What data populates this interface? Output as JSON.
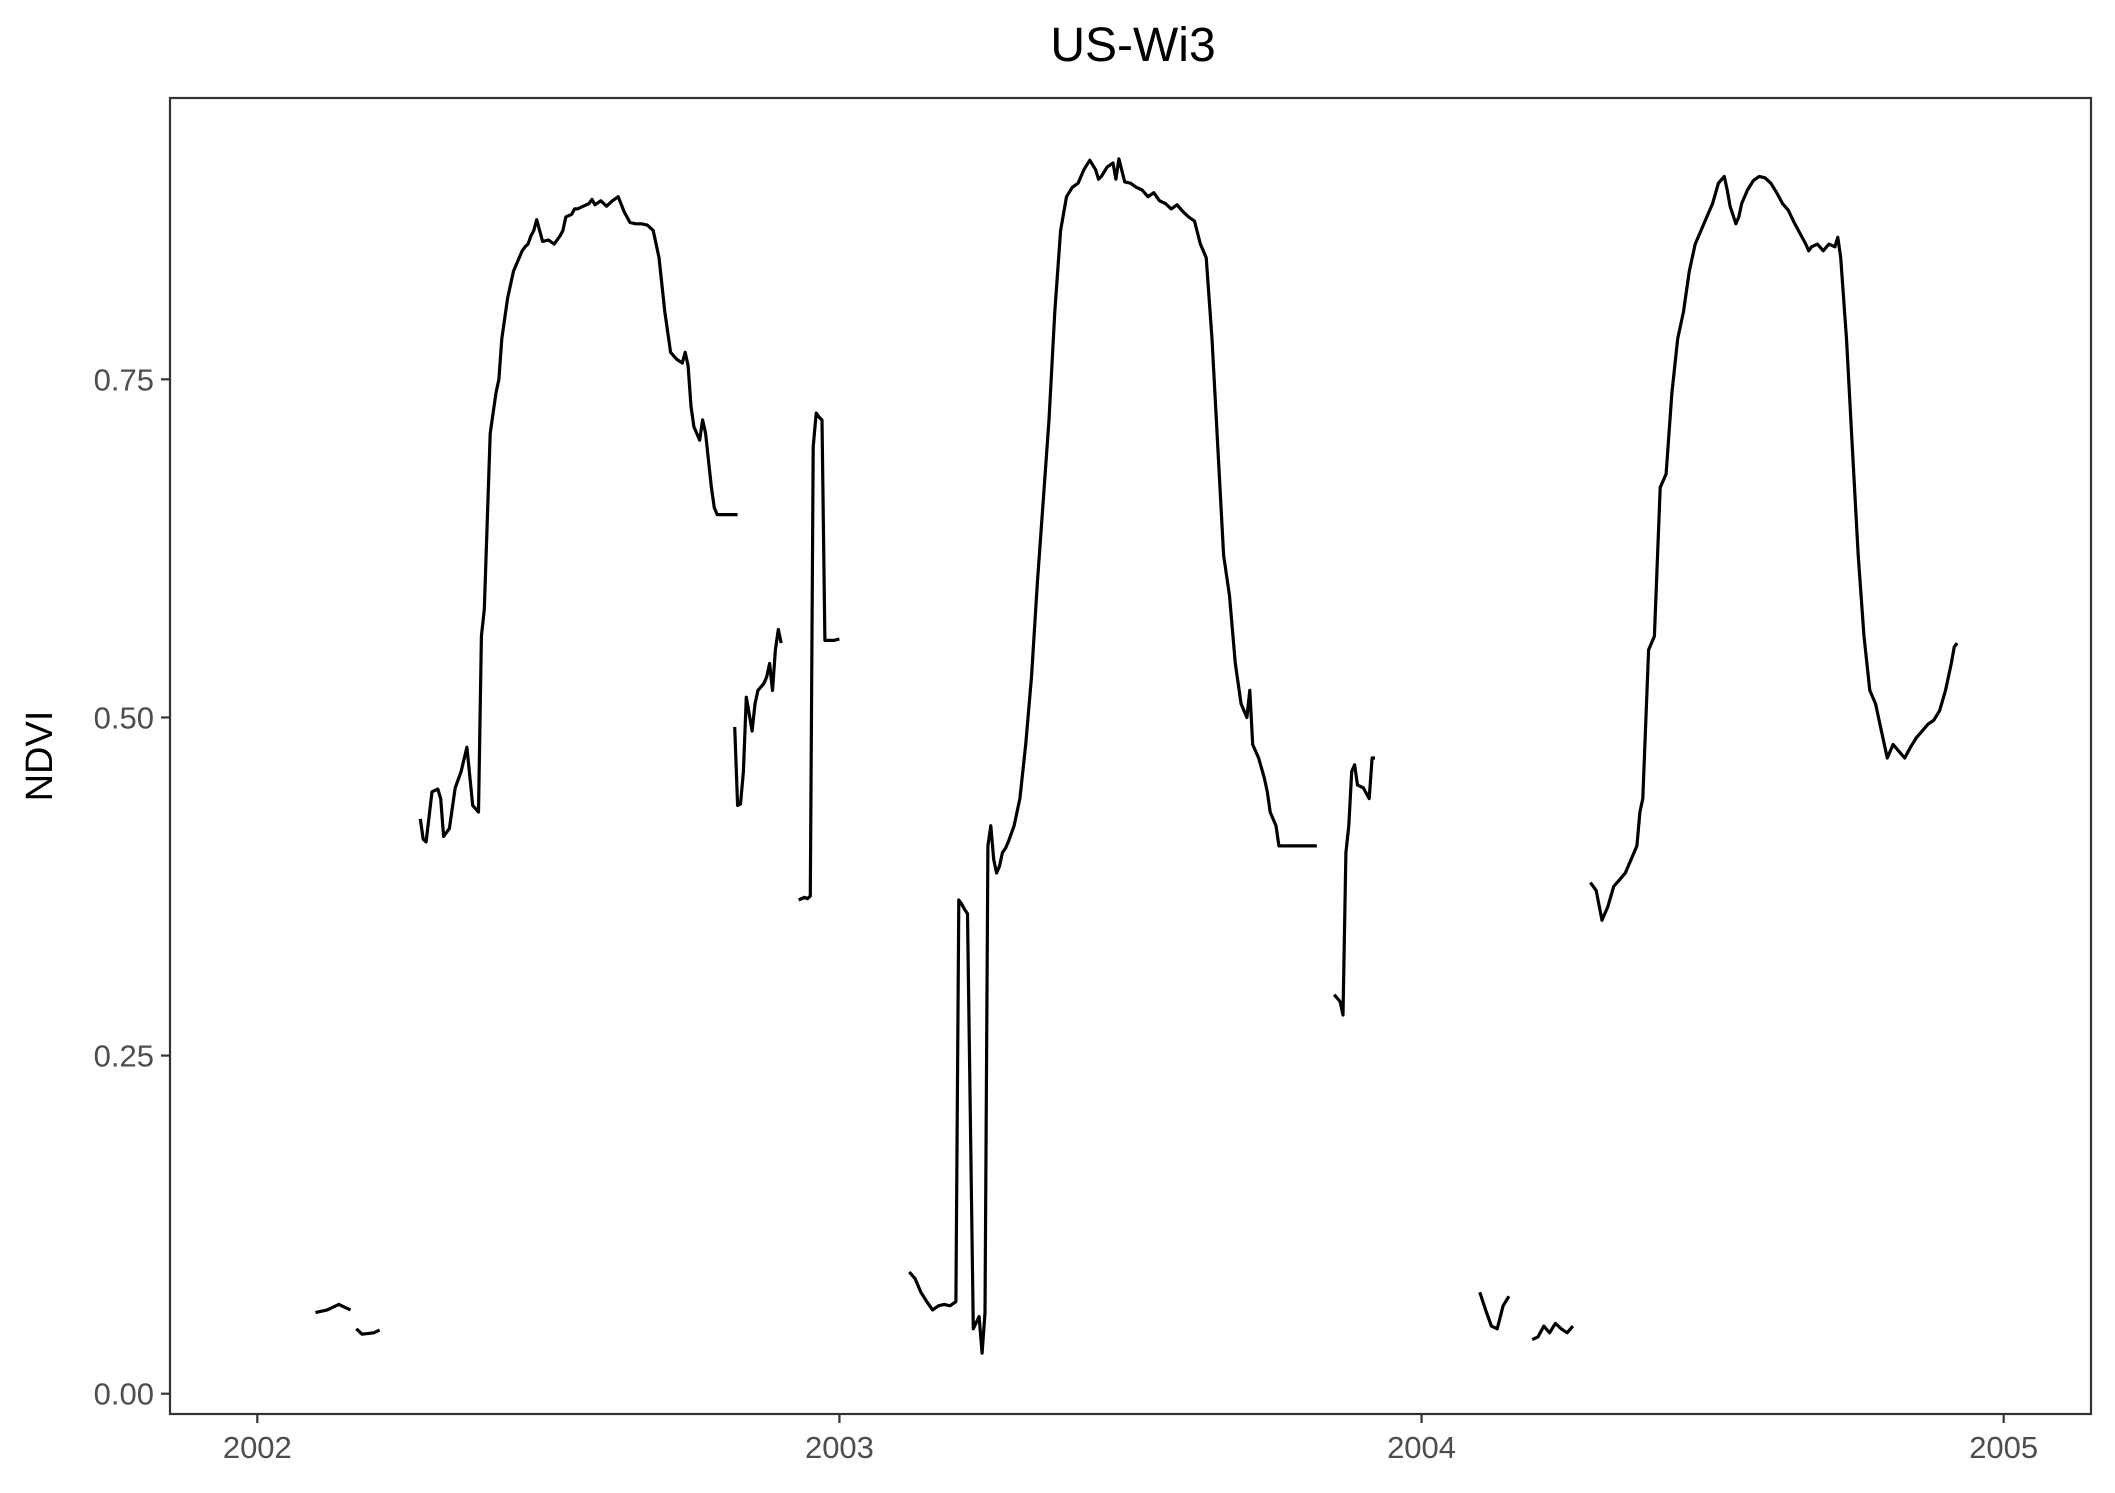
{
  "chart_data": {
    "type": "line",
    "title": "US-Wi3",
    "xlabel": "",
    "ylabel": "NDVI",
    "x_ticks": [
      "2002",
      "2003",
      "2004",
      "2005"
    ],
    "y_ticks": [
      "0.00",
      "0.25",
      "0.50",
      "0.75"
    ],
    "xlim": [
      2001.85,
      2005.15
    ],
    "ylim": [
      -0.015,
      0.958
    ],
    "grid": false,
    "legend": "none",
    "line_color": "#000000",
    "segments": [
      {
        "x": [
          2002.1,
          2002.12,
          2002.14,
          2002.16
        ],
        "y": [
          0.06,
          0.062,
          0.066,
          0.062
        ]
      },
      {
        "x": [
          2002.17,
          2002.18,
          2002.2,
          2002.21
        ],
        "y": [
          0.048,
          0.044,
          0.045,
          0.047
        ]
      },
      {
        "x": [
          2002.28,
          2002.285,
          2002.29,
          2002.3,
          2002.31,
          2002.315,
          2002.32,
          2002.33,
          2002.34,
          2002.35,
          2002.36,
          2002.37,
          2002.38,
          2002.385,
          2002.39,
          2002.4,
          2002.41,
          2002.415,
          2002.42,
          2002.43,
          2002.44,
          2002.445,
          2002.45,
          2002.455,
          2002.46,
          2002.465,
          2002.47,
          2002.475,
          2002.48,
          2002.49,
          2002.5,
          2002.51,
          2002.52,
          2002.525,
          2002.53,
          2002.54,
          2002.545,
          2002.55,
          2002.56,
          2002.57,
          2002.575,
          2002.58,
          2002.59,
          2002.6,
          2002.61,
          2002.62,
          2002.63,
          2002.64,
          2002.65,
          2002.66,
          2002.67,
          2002.68,
          2002.685,
          2002.69,
          2002.7,
          2002.71,
          2002.72,
          2002.73,
          2002.735,
          2002.74,
          2002.745,
          2002.75,
          2002.76,
          2002.765,
          2002.77,
          2002.775,
          2002.78,
          2002.785,
          2002.79,
          2002.795,
          2002.8,
          2002.805,
          2002.81,
          2002.815,
          2002.82,
          2002.825
        ],
        "y": [
          0.425,
          0.41,
          0.408,
          0.445,
          0.447,
          0.44,
          0.412,
          0.418,
          0.448,
          0.46,
          0.478,
          0.435,
          0.43,
          0.56,
          0.58,
          0.71,
          0.74,
          0.75,
          0.78,
          0.81,
          0.83,
          0.835,
          0.84,
          0.845,
          0.848,
          0.85,
          0.856,
          0.86,
          0.868,
          0.852,
          0.853,
          0.85,
          0.856,
          0.86,
          0.87,
          0.872,
          0.876,
          0.876,
          0.878,
          0.88,
          0.883,
          0.879,
          0.882,
          0.878,
          0.882,
          0.885,
          0.874,
          0.866,
          0.865,
          0.865,
          0.864,
          0.86,
          0.85,
          0.84,
          0.8,
          0.77,
          0.765,
          0.762,
          0.77,
          0.76,
          0.73,
          0.715,
          0.705,
          0.72,
          0.71,
          0.69,
          0.67,
          0.655,
          0.65,
          0.65,
          0.65,
          0.65,
          0.65,
          0.65,
          0.65,
          0.65
        ]
      },
      {
        "x": [
          2002.82,
          2002.825,
          2002.83,
          2002.835,
          2002.84,
          2002.85,
          2002.855,
          2002.86,
          2002.87,
          2002.875,
          2002.88,
          2002.885,
          2002.89,
          2002.895,
          2002.9
        ],
        "y": [
          0.493,
          0.435,
          0.436,
          0.46,
          0.515,
          0.49,
          0.51,
          0.52,
          0.525,
          0.53,
          0.54,
          0.52,
          0.55,
          0.565,
          0.555
        ]
      },
      {
        "x": [
          2002.93,
          2002.94,
          2002.945,
          2002.95,
          2002.955,
          2002.96,
          2002.965,
          2002.97,
          2002.975,
          2002.98,
          2002.99,
          2003.0
        ],
        "y": [
          0.365,
          0.367,
          0.366,
          0.368,
          0.7,
          0.725,
          0.722,
          0.72,
          0.557,
          0.557,
          0.557,
          0.558
        ]
      },
      {
        "x": [
          2003.12,
          2003.13,
          2003.14,
          2003.15,
          2003.16,
          2003.17,
          2003.18,
          2003.19,
          2003.2,
          2003.205,
          2003.21,
          2003.215,
          2003.22,
          2003.23,
          2003.24,
          2003.245,
          2003.25,
          2003.255,
          2003.26,
          2003.265,
          2003.27,
          2003.275,
          2003.28,
          2003.285,
          2003.29,
          2003.3,
          2003.31,
          2003.32,
          2003.33,
          2003.34,
          2003.35,
          2003.36,
          2003.37,
          2003.38,
          2003.39,
          2003.4,
          2003.41,
          2003.415,
          2003.42,
          2003.43,
          2003.44,
          2003.445,
          2003.45,
          2003.46,
          2003.47,
          2003.475,
          2003.48,
          2003.49,
          2003.5,
          2003.51,
          2003.52,
          2003.53,
          2003.54,
          2003.55,
          2003.56,
          2003.57,
          2003.58,
          2003.59,
          2003.6,
          2003.61,
          2003.62,
          2003.63,
          2003.64,
          2003.65,
          2003.66,
          2003.67,
          2003.68,
          2003.69,
          2003.7,
          2003.705,
          2003.71,
          2003.72,
          2003.73,
          2003.735,
          2003.74,
          2003.75,
          2003.755,
          2003.76,
          2003.765,
          2003.77,
          2003.775,
          2003.78,
          2003.785,
          2003.79,
          2003.795,
          2003.8,
          2003.805,
          2003.81,
          2003.815,
          2003.82
        ],
        "y": [
          0.09,
          0.085,
          0.075,
          0.068,
          0.062,
          0.065,
          0.066,
          0.065,
          0.068,
          0.365,
          0.362,
          0.358,
          0.355,
          0.048,
          0.057,
          0.03,
          0.06,
          0.405,
          0.42,
          0.395,
          0.385,
          0.39,
          0.4,
          0.403,
          0.408,
          0.42,
          0.44,
          0.48,
          0.53,
          0.6,
          0.66,
          0.72,
          0.8,
          0.86,
          0.885,
          0.892,
          0.895,
          0.9,
          0.905,
          0.912,
          0.905,
          0.898,
          0.9,
          0.907,
          0.91,
          0.898,
          0.913,
          0.896,
          0.895,
          0.892,
          0.89,
          0.885,
          0.888,
          0.882,
          0.88,
          0.876,
          0.879,
          0.874,
          0.87,
          0.867,
          0.85,
          0.84,
          0.78,
          0.7,
          0.62,
          0.59,
          0.54,
          0.51,
          0.5,
          0.52,
          0.48,
          0.47,
          0.455,
          0.445,
          0.43,
          0.42,
          0.405,
          0.405,
          0.405,
          0.405,
          0.405,
          0.405,
          0.405,
          0.405,
          0.405,
          0.405,
          0.405,
          0.405,
          0.405,
          0.405
        ]
      },
      {
        "x": [
          2003.85,
          2003.86,
          2003.865,
          2003.87,
          2003.875,
          2003.88,
          2003.885,
          2003.89,
          2003.9,
          2003.91,
          2003.915,
          2003.92
        ],
        "y": [
          0.295,
          0.29,
          0.28,
          0.4,
          0.42,
          0.46,
          0.465,
          0.45,
          0.448,
          0.44,
          0.47,
          0.47
        ]
      },
      {
        "x": [
          2004.1,
          2004.11,
          2004.12,
          2004.13,
          2004.14,
          2004.15
        ],
        "y": [
          0.075,
          0.062,
          0.05,
          0.048,
          0.065,
          0.072
        ]
      },
      {
        "x": [
          2004.19,
          2004.2,
          2004.21,
          2004.22,
          2004.23,
          2004.24,
          2004.25,
          2004.26
        ],
        "y": [
          0.04,
          0.042,
          0.05,
          0.045,
          0.052,
          0.048,
          0.045,
          0.05
        ]
      },
      {
        "x": [
          2004.29,
          2004.3,
          2004.31,
          2004.32,
          2004.33,
          2004.34,
          2004.35,
          2004.36,
          2004.37,
          2004.375,
          2004.38,
          2004.39,
          2004.4,
          2004.41,
          2004.42,
          2004.43,
          2004.44,
          2004.45,
          2004.46,
          2004.47,
          2004.48,
          2004.49,
          2004.5,
          2004.51,
          2004.52,
          2004.525,
          2004.53,
          2004.54,
          2004.545,
          2004.55,
          2004.56,
          2004.57,
          2004.58,
          2004.59,
          2004.6,
          2004.61,
          2004.62,
          2004.63,
          2004.64,
          2004.65,
          2004.66,
          2004.665,
          2004.67,
          2004.68,
          2004.69,
          2004.7,
          2004.71,
          2004.715,
          2004.72,
          2004.73,
          2004.74,
          2004.75,
          2004.76,
          2004.77,
          2004.78,
          2004.79,
          2004.8,
          2004.81,
          2004.82,
          2004.83,
          2004.84,
          2004.85,
          2004.86,
          2004.87,
          2004.88,
          2004.89,
          2004.9,
          2004.91,
          2004.915,
          2004.92
        ],
        "y": [
          0.378,
          0.372,
          0.35,
          0.36,
          0.375,
          0.38,
          0.385,
          0.395,
          0.405,
          0.43,
          0.44,
          0.55,
          0.56,
          0.67,
          0.68,
          0.74,
          0.78,
          0.8,
          0.83,
          0.85,
          0.86,
          0.87,
          0.88,
          0.895,
          0.9,
          0.89,
          0.878,
          0.865,
          0.87,
          0.88,
          0.89,
          0.897,
          0.9,
          0.899,
          0.895,
          0.888,
          0.88,
          0.875,
          0.866,
          0.858,
          0.85,
          0.845,
          0.848,
          0.85,
          0.845,
          0.85,
          0.848,
          0.855,
          0.84,
          0.78,
          0.7,
          0.62,
          0.56,
          0.52,
          0.51,
          0.49,
          0.47,
          0.48,
          0.475,
          0.47,
          0.478,
          0.485,
          0.49,
          0.495,
          0.498,
          0.505,
          0.52,
          0.54,
          0.552,
          0.555
        ]
      }
    ]
  }
}
